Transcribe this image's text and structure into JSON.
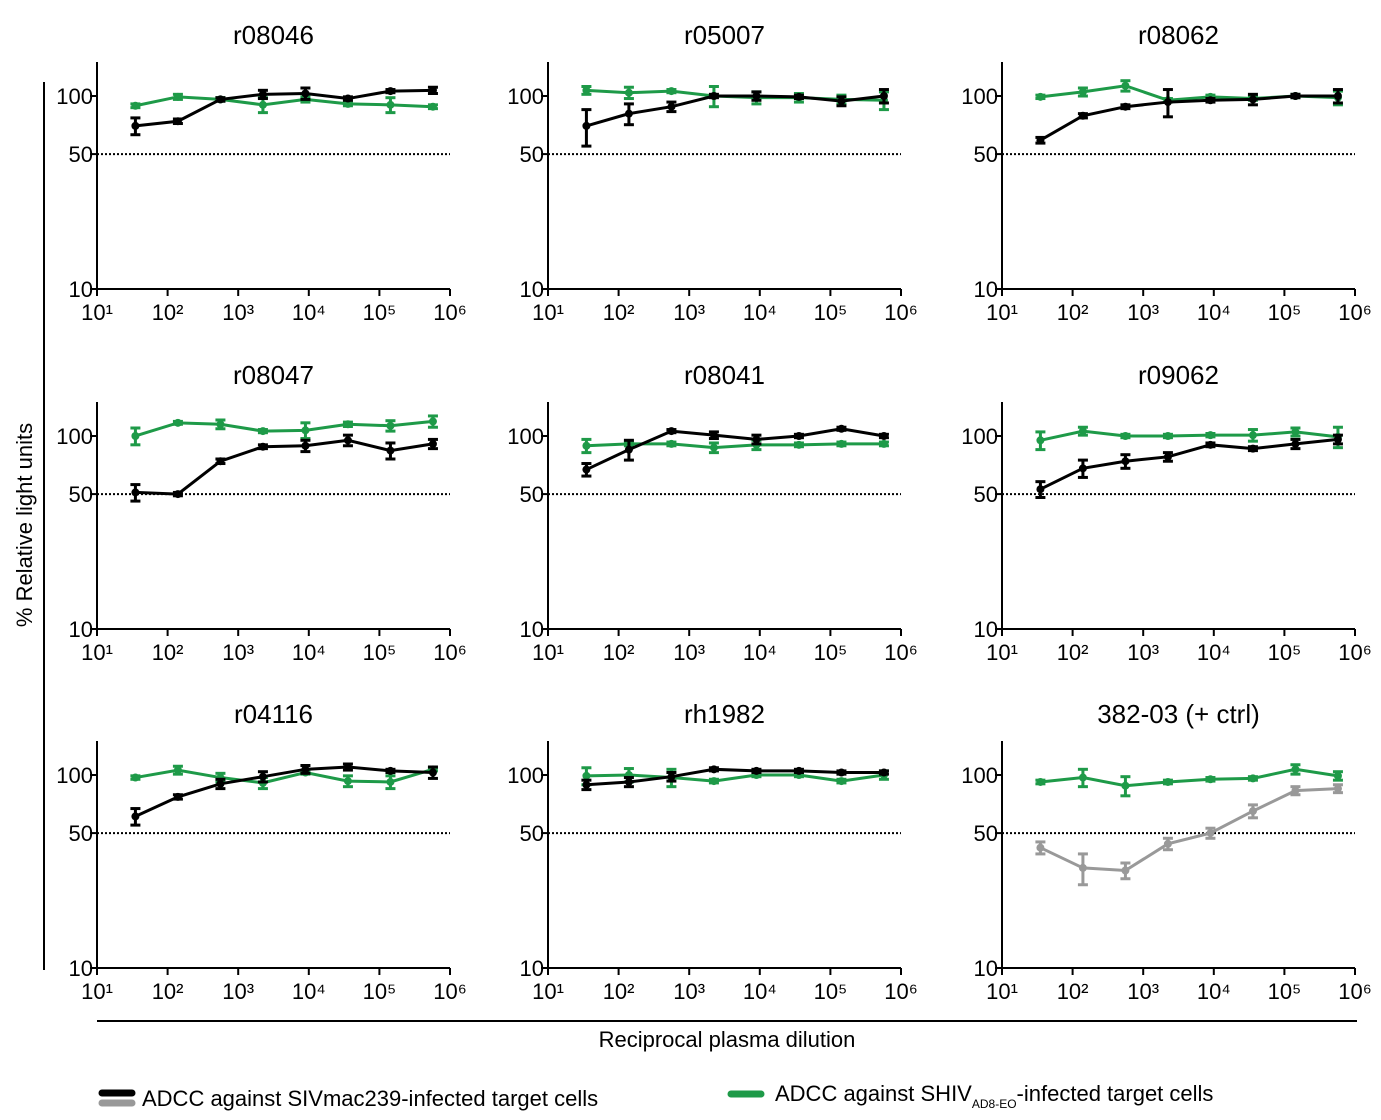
{
  "y_label": "% Relative light units",
  "x_label": "Reciprocal plasma dilution",
  "legend": [
    {
      "text": "ADCC against SIVmac239-infected target cells",
      "colors": [
        "#000000",
        "#999999"
      ]
    },
    {
      "text": "ADCC against SHIV",
      "subscript": "AD8-EO",
      "text_after": "-infected target cells",
      "colors": [
        "#1e9a48"
      ]
    }
  ],
  "chart_data": [
    {
      "type": "line",
      "title": "r08046",
      "title_color": "#000000",
      "xscale": "log",
      "yscale": "log",
      "xlim": [
        10,
        1000000
      ],
      "ylim": [
        10,
        150
      ],
      "xticks": [
        {
          "value": 10,
          "label": "10¹"
        },
        {
          "value": 100,
          "label": "10²"
        },
        {
          "value": 1000,
          "label": "10³"
        },
        {
          "value": 10000,
          "label": "10⁴"
        },
        {
          "value": 100000,
          "label": "10⁵"
        },
        {
          "value": 1000000,
          "label": "10⁶"
        }
      ],
      "yticks": [
        10,
        50,
        100
      ],
      "reference_line": 50,
      "x": [
        35,
        140,
        560,
        2240,
        8960,
        35840,
        143360,
        573440
      ],
      "series": [
        {
          "color": "#1e9a48",
          "values": [
            89,
            99,
            96,
            90,
            96,
            91,
            90,
            88
          ],
          "errors": [
            2,
            3,
            2,
            8,
            3,
            2,
            8,
            2
          ]
        },
        {
          "color": "#000000",
          "values": [
            70,
            74,
            96,
            102,
            103,
            97,
            106,
            107
          ],
          "errors": [
            7,
            2,
            2,
            5,
            7,
            2,
            2,
            4
          ]
        }
      ]
    },
    {
      "type": "line",
      "title": "r05007",
      "title_color": "#000000",
      "xscale": "log",
      "yscale": "log",
      "xlim": [
        10,
        1000000
      ],
      "ylim": [
        10,
        150
      ],
      "xticks": [
        {
          "value": 10,
          "label": "10¹"
        },
        {
          "value": 100,
          "label": "10²"
        },
        {
          "value": 1000,
          "label": "10³"
        },
        {
          "value": 10000,
          "label": "10⁴"
        },
        {
          "value": 100000,
          "label": "10⁵"
        },
        {
          "value": 1000000,
          "label": "10⁶"
        }
      ],
      "yticks": [
        10,
        50,
        100
      ],
      "reference_line": 50,
      "x": [
        35,
        140,
        560,
        2240,
        8960,
        35840,
        143360,
        573440
      ],
      "series": [
        {
          "color": "#1e9a48",
          "values": [
            107,
            104,
            106,
            100,
            98,
            98,
            96,
            95
          ],
          "errors": [
            5,
            7,
            2,
            12,
            7,
            5,
            5,
            10
          ]
        },
        {
          "color": "#000000",
          "values": [
            70,
            81,
            88,
            100,
            100,
            99,
            94,
            100
          ],
          "errors": [
            15,
            10,
            5,
            2,
            5,
            2,
            5,
            8
          ]
        }
      ]
    },
    {
      "type": "line",
      "title": "r08062",
      "title_color": "#000000",
      "xscale": "log",
      "yscale": "log",
      "xlim": [
        10,
        1000000
      ],
      "ylim": [
        10,
        150
      ],
      "xticks": [
        {
          "value": 10,
          "label": "10¹"
        },
        {
          "value": 100,
          "label": "10²"
        },
        {
          "value": 1000,
          "label": "10³"
        },
        {
          "value": 10000,
          "label": "10⁴"
        },
        {
          "value": 100000,
          "label": "10⁵"
        },
        {
          "value": 1000000,
          "label": "10⁶"
        }
      ],
      "yticks": [
        10,
        50,
        100
      ],
      "reference_line": 50,
      "x": [
        35,
        140,
        560,
        2240,
        8960,
        35840,
        143360,
        573440
      ],
      "series": [
        {
          "color": "#1e9a48",
          "values": [
            99,
            105,
            113,
            95,
            99,
            97,
            100,
            98
          ],
          "errors": [
            2,
            5,
            7,
            2,
            2,
            2,
            2,
            8
          ]
        },
        {
          "color": "#000000",
          "values": [
            59,
            79,
            88,
            93,
            95,
            96,
            100,
            100
          ],
          "errors": [
            2,
            2,
            2,
            15,
            2,
            6,
            2,
            8
          ]
        }
      ]
    },
    {
      "type": "line",
      "title": "r08047",
      "title_color": "#000000",
      "xscale": "log",
      "yscale": "log",
      "xlim": [
        10,
        1000000
      ],
      "ylim": [
        10,
        150
      ],
      "xticks": [
        {
          "value": 10,
          "label": "10¹"
        },
        {
          "value": 100,
          "label": "10²"
        },
        {
          "value": 1000,
          "label": "10³"
        },
        {
          "value": 10000,
          "label": "10⁴"
        },
        {
          "value": 100000,
          "label": "10⁵"
        },
        {
          "value": 1000000,
          "label": "10⁶"
        }
      ],
      "yticks": [
        10,
        50,
        100
      ],
      "reference_line": 50,
      "x": [
        35,
        140,
        560,
        2240,
        8960,
        35840,
        143360,
        573440
      ],
      "series": [
        {
          "color": "#1e9a48",
          "values": [
            100,
            117,
            115,
            106,
            107,
            115,
            113,
            119
          ],
          "errors": [
            10,
            2,
            6,
            2,
            10,
            3,
            7,
            8
          ]
        },
        {
          "color": "#000000",
          "values": [
            51,
            50,
            74,
            88,
            89,
            95,
            84,
            91
          ],
          "errors": [
            5,
            1,
            2,
            2,
            6,
            6,
            8,
            5
          ]
        }
      ]
    },
    {
      "type": "line",
      "title": "r08041",
      "title_color": "#000000",
      "xscale": "log",
      "yscale": "log",
      "xlim": [
        10,
        1000000
      ],
      "ylim": [
        10,
        150
      ],
      "xticks": [
        {
          "value": 10,
          "label": "10¹"
        },
        {
          "value": 100,
          "label": "10²"
        },
        {
          "value": 1000,
          "label": "10³"
        },
        {
          "value": 10000,
          "label": "10⁴"
        },
        {
          "value": 100000,
          "label": "10⁵"
        },
        {
          "value": 1000000,
          "label": "10⁶"
        }
      ],
      "yticks": [
        10,
        50,
        100
      ],
      "reference_line": 50,
      "x": [
        35,
        140,
        560,
        2240,
        8960,
        35840,
        143360,
        573440
      ],
      "series": [
        {
          "color": "#1e9a48",
          "values": [
            89,
            91,
            91,
            87,
            90,
            90,
            91,
            91
          ],
          "errors": [
            7,
            2,
            2,
            5,
            5,
            2,
            2,
            2
          ]
        },
        {
          "color": "#000000",
          "values": [
            67,
            85,
            106,
            101,
            96,
            100,
            109,
            100
          ],
          "errors": [
            5,
            10,
            2,
            4,
            5,
            2,
            2,
            2
          ]
        }
      ]
    },
    {
      "type": "line",
      "title": "r09062",
      "title_color": "#000000",
      "xscale": "log",
      "yscale": "log",
      "xlim": [
        10,
        1000000
      ],
      "ylim": [
        10,
        150
      ],
      "xticks": [
        {
          "value": 10,
          "label": "10¹"
        },
        {
          "value": 100,
          "label": "10²"
        },
        {
          "value": 1000,
          "label": "10³"
        },
        {
          "value": 10000,
          "label": "10⁴"
        },
        {
          "value": 100000,
          "label": "10⁵"
        },
        {
          "value": 1000000,
          "label": "10⁶"
        }
      ],
      "yticks": [
        10,
        50,
        100
      ],
      "reference_line": 50,
      "x": [
        35,
        140,
        560,
        2240,
        8960,
        35840,
        143360,
        573440
      ],
      "series": [
        {
          "color": "#1e9a48",
          "values": [
            95,
            106,
            100,
            100,
            101,
            101,
            105,
            99
          ],
          "errors": [
            10,
            5,
            2,
            2,
            2,
            7,
            5,
            12
          ]
        },
        {
          "color": "#000000",
          "values": [
            53,
            68,
            74,
            78,
            90,
            86,
            91,
            96
          ],
          "errors": [
            5,
            7,
            6,
            4,
            2,
            2,
            5,
            5
          ]
        }
      ]
    },
    {
      "type": "line",
      "title": "r04116",
      "title_color": "#000000",
      "xscale": "log",
      "yscale": "log",
      "xlim": [
        10,
        1000000
      ],
      "ylim": [
        10,
        150
      ],
      "xticks": [
        {
          "value": 10,
          "label": "10¹"
        },
        {
          "value": 100,
          "label": "10²"
        },
        {
          "value": 1000,
          "label": "10³"
        },
        {
          "value": 10000,
          "label": "10⁴"
        },
        {
          "value": 100000,
          "label": "10⁵"
        },
        {
          "value": 1000000,
          "label": "10⁶"
        }
      ],
      "yticks": [
        10,
        50,
        100
      ],
      "reference_line": 50,
      "x": [
        35,
        140,
        560,
        2240,
        8960,
        35840,
        143360,
        573440
      ],
      "series": [
        {
          "color": "#1e9a48",
          "values": [
            97,
            106,
            97,
            91,
            103,
            93,
            92,
            107
          ],
          "errors": [
            2,
            5,
            5,
            6,
            2,
            6,
            7,
            2
          ]
        },
        {
          "color": "#000000",
          "values": [
            61,
            77,
            90,
            98,
            107,
            110,
            105,
            103
          ],
          "errors": [
            6,
            2,
            5,
            6,
            5,
            4,
            2,
            7
          ]
        }
      ]
    },
    {
      "type": "line",
      "title": "rh1982",
      "title_color": "#000000",
      "xscale": "log",
      "yscale": "log",
      "xlim": [
        10,
        1000000
      ],
      "ylim": [
        10,
        150
      ],
      "xticks": [
        {
          "value": 10,
          "label": "10¹"
        },
        {
          "value": 100,
          "label": "10²"
        },
        {
          "value": 1000,
          "label": "10³"
        },
        {
          "value": 10000,
          "label": "10⁴"
        },
        {
          "value": 100000,
          "label": "10⁵"
        },
        {
          "value": 1000000,
          "label": "10⁶"
        }
      ],
      "yticks": [
        10,
        50,
        100
      ],
      "reference_line": 50,
      "x": [
        35,
        140,
        560,
        2240,
        8960,
        35840,
        143360,
        573440
      ],
      "series": [
        {
          "color": "#1e9a48",
          "values": [
            99,
            100,
            97,
            93,
            100,
            100,
            93,
            100
          ],
          "errors": [
            10,
            8,
            10,
            2,
            2,
            2,
            2,
            5
          ]
        },
        {
          "color": "#000000",
          "values": [
            89,
            92,
            98,
            107,
            105,
            105,
            103,
            103
          ],
          "errors": [
            5,
            5,
            5,
            2,
            2,
            2,
            2,
            2
          ]
        }
      ]
    },
    {
      "type": "line",
      "title": "382-03 (+ ctrl)",
      "title_color": "#8c8c8c",
      "xscale": "log",
      "yscale": "log",
      "xlim": [
        10,
        1000000
      ],
      "ylim": [
        10,
        150
      ],
      "xticks": [
        {
          "value": 10,
          "label": "10¹"
        },
        {
          "value": 100,
          "label": "10²"
        },
        {
          "value": 1000,
          "label": "10³"
        },
        {
          "value": 10000,
          "label": "10⁴"
        },
        {
          "value": 100000,
          "label": "10⁵"
        },
        {
          "value": 1000000,
          "label": "10⁶"
        }
      ],
      "yticks": [
        10,
        50,
        100
      ],
      "reference_line": 50,
      "x": [
        35,
        140,
        560,
        2240,
        8960,
        35840,
        143360,
        573440
      ],
      "series": [
        {
          "color": "#1e9a48",
          "values": [
            92,
            97,
            88,
            92,
            95,
            96,
            107,
            99
          ],
          "errors": [
            2,
            10,
            10,
            2,
            2,
            2,
            6,
            5
          ]
        },
        {
          "color": "#999999",
          "values": [
            42,
            33,
            32,
            44,
            50,
            65,
            83,
            85
          ],
          "errors": [
            3,
            6,
            3,
            3,
            3,
            5,
            4,
            4
          ]
        }
      ]
    }
  ]
}
